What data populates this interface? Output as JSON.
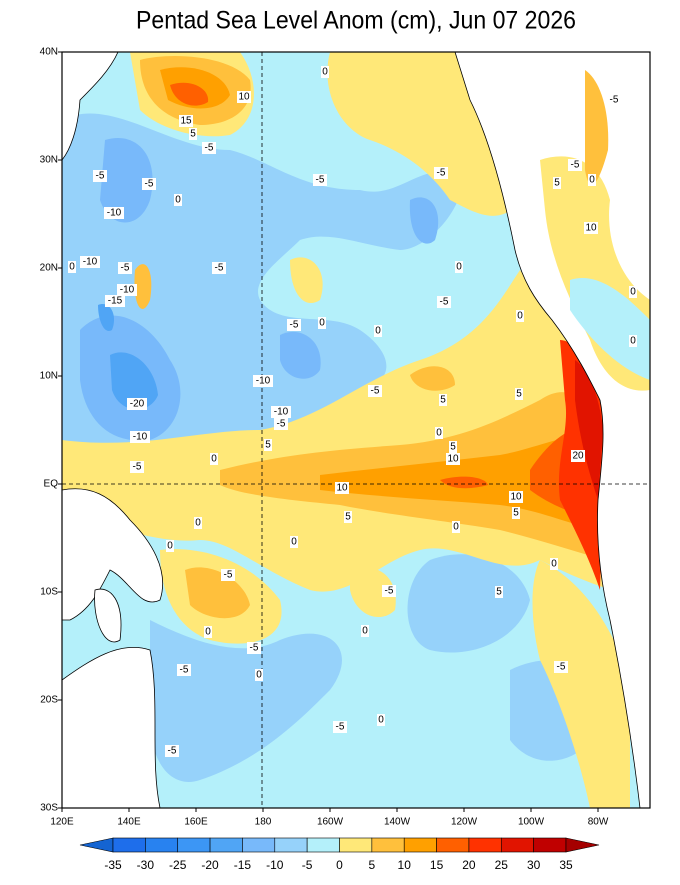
{
  "title": "Pentad Sea Level Anom (cm), Jun 07 2026",
  "lat_labels": [
    "40N",
    "30N",
    "20N",
    "10N",
    "EQ",
    "10S",
    "20S",
    "30S"
  ],
  "lon_labels": [
    "120E",
    "140E",
    "160E",
    "180",
    "160W",
    "140W",
    "120W",
    "100W",
    "80W"
  ],
  "colorbar": {
    "ticks": [
      -35,
      -30,
      -25,
      -20,
      -15,
      -10,
      -5,
      0,
      5,
      10,
      15,
      20,
      25,
      30,
      35
    ],
    "colors": [
      "#1464d2",
      "#1e6eeb",
      "#2882f0",
      "#3c96f5",
      "#50a5f5",
      "#78b9fa",
      "#96d2fa",
      "#b4f0fa",
      "#ffe878",
      "#ffc03c",
      "#ffa000",
      "#ff6000",
      "#ff3200",
      "#e11400",
      "#c00000",
      "#a50000"
    ]
  },
  "contour_labels": [
    0,
    10,
    15,
    5,
    -5,
    -5,
    -5,
    -5,
    -5,
    -10,
    0,
    -10,
    0,
    -5,
    -5,
    -15,
    -10,
    0,
    -5,
    -5,
    0,
    0,
    0,
    -10,
    -20,
    -5,
    5,
    5,
    -10,
    -5,
    -10,
    0,
    5,
    5,
    10,
    20,
    -5,
    0,
    10,
    10,
    5,
    5,
    0,
    0,
    0,
    0,
    -5,
    -5,
    5,
    0,
    0,
    -5,
    0,
    -5,
    -5,
    0,
    -5,
    -5,
    0,
    5,
    -5,
    10,
    0,
    0,
    -5,
    0
  ]
}
